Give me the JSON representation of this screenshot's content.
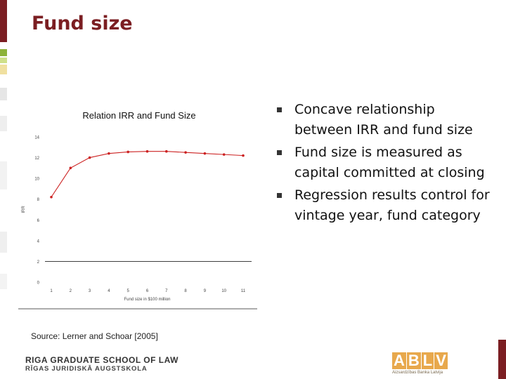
{
  "slide": {
    "title": "Fund size",
    "source": "Source: Lerner and Schoar [2005]",
    "bullets": [
      "Concave relationship between IRR and fund size",
      "Fund size is measured as capital committed at closing",
      "Regression results control for vintage year, fund category"
    ]
  },
  "footer": {
    "school_line1": "RIGA GRADUATE SCHOOL OF LAW",
    "school_line2": "RĪGAS JURIDISKĀ AUGSTSKOLA",
    "logo_main": "ABLV",
    "logo_sub": "Aizsardzības Banka Latvija"
  },
  "colors": {
    "accent": "#7b1e22",
    "series": "#cc2222",
    "logo": "#e8a84c"
  },
  "chart_data": {
    "type": "line",
    "title": "Relation IRR and Fund Size",
    "xlabel": "Fund size in $100 million",
    "ylabel": "IRR",
    "categories": [
      "1",
      "2",
      "3",
      "4",
      "5",
      "6",
      "7",
      "8",
      "9",
      "10",
      "11"
    ],
    "ylim": [
      0,
      14
    ],
    "yticks": [
      0,
      2,
      4,
      6,
      8,
      10,
      12,
      14
    ],
    "series": [
      {
        "values": [
          8.2,
          11.0,
          12.0,
          12.4,
          12.55,
          12.6,
          12.6,
          12.5,
          12.4,
          12.3,
          12.2
        ]
      }
    ],
    "legend": "none"
  }
}
